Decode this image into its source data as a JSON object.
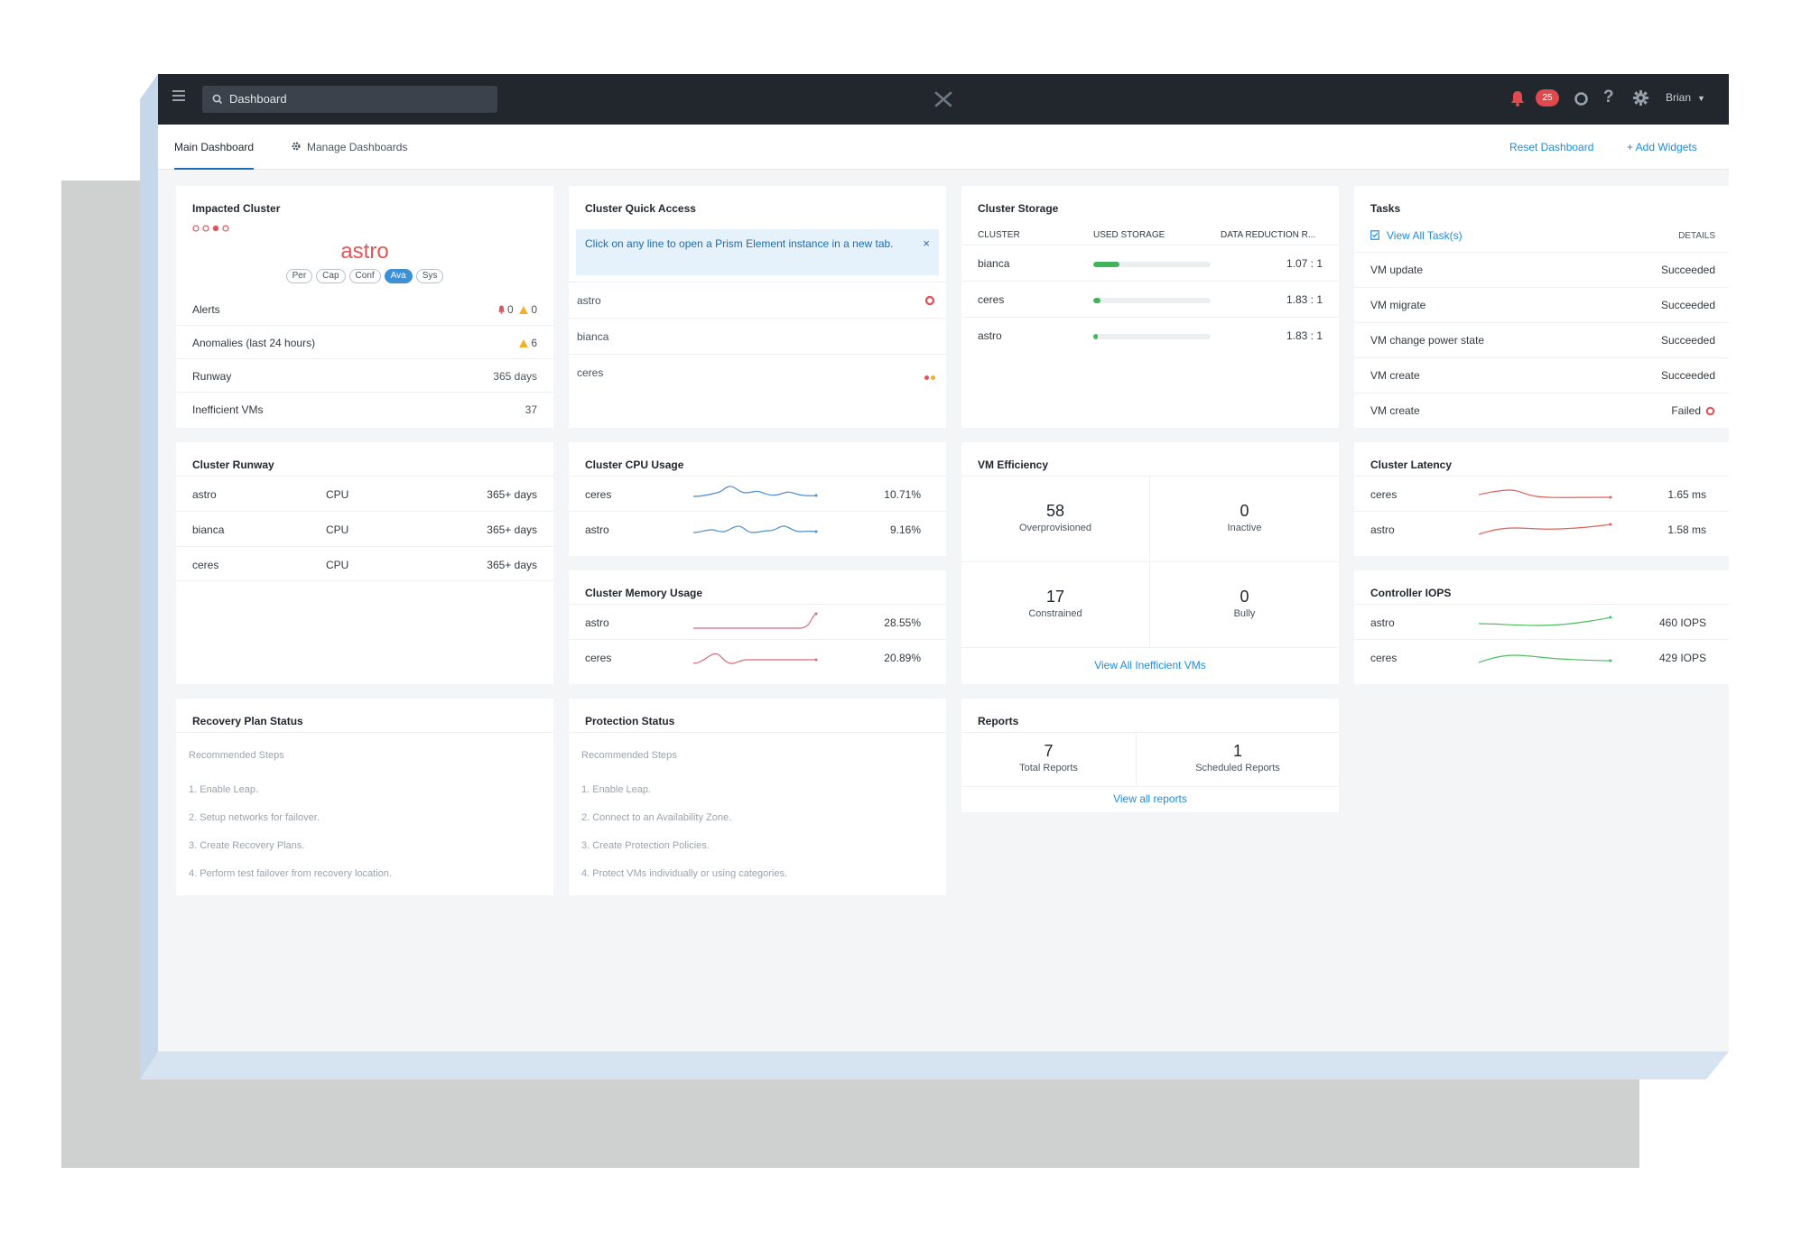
{
  "topbar": {
    "search_value": "Dashboard",
    "alert_count": "25",
    "user_name": "Brian"
  },
  "tabs": {
    "main": "Main Dashboard",
    "manage": "Manage Dashboards",
    "reset": "Reset Dashboard",
    "add": "+ Add Widgets"
  },
  "impacted_cluster": {
    "title": "Impacted Cluster",
    "cluster_name": "astro",
    "pills": [
      "Per",
      "Cap",
      "Conf",
      "Ava",
      "Sys"
    ],
    "active_pill": "Ava",
    "rows": [
      {
        "label": "Alerts",
        "critical": "0",
        "warning": "0"
      },
      {
        "label": "Anomalies (last 24 hours)",
        "value": "6"
      },
      {
        "label": "Runway",
        "value": "365 days"
      },
      {
        "label": "Inefficient VMs",
        "value": "37"
      }
    ]
  },
  "quick_access": {
    "title": "Cluster Quick Access",
    "banner": "Click on any line to open a Prism Element instance in a new tab.",
    "close": "×",
    "items": [
      "astro",
      "bianca",
      "ceres"
    ]
  },
  "storage": {
    "title": "Cluster Storage",
    "headers": [
      "CLUSTER",
      "USED STORAGE",
      "DATA REDUCTION R..."
    ],
    "rows": [
      {
        "cluster": "bianca",
        "used_fraction": 0.22,
        "ratio": "1.07 : 1"
      },
      {
        "cluster": "ceres",
        "used_fraction": 0.06,
        "ratio": "1.83 : 1"
      },
      {
        "cluster": "astro",
        "used_fraction": 0.04,
        "ratio": "1.83 : 1"
      }
    ]
  },
  "tasks": {
    "title": "Tasks",
    "view_all": "View All Task(s)",
    "details": "DETAILS",
    "rows": [
      {
        "name": "VM update",
        "status": "Succeeded"
      },
      {
        "name": "VM migrate",
        "status": "Succeeded"
      },
      {
        "name": "VM change power state",
        "status": "Succeeded"
      },
      {
        "name": "VM create",
        "status": "Succeeded"
      },
      {
        "name": "VM create",
        "status": "Failed"
      }
    ]
  },
  "runway": {
    "title": "Cluster Runway",
    "rows": [
      {
        "cluster": "astro",
        "resource": "CPU",
        "value": "365+ days"
      },
      {
        "cluster": "bianca",
        "resource": "CPU",
        "value": "365+ days"
      },
      {
        "cluster": "ceres",
        "resource": "CPU",
        "value": "365+ days"
      }
    ]
  },
  "cpu_usage": {
    "title": "Cluster CPU Usage",
    "rows": [
      {
        "cluster": "ceres",
        "value": "10.71%"
      },
      {
        "cluster": "astro",
        "value": "9.16%"
      }
    ]
  },
  "memory_usage": {
    "title": "Cluster Memory Usage",
    "rows": [
      {
        "cluster": "astro",
        "value": "28.55%"
      },
      {
        "cluster": "ceres",
        "value": "20.89%"
      }
    ]
  },
  "vm_efficiency": {
    "title": "VM Efficiency",
    "cells": [
      {
        "value": "58",
        "label": "Overprovisioned"
      },
      {
        "value": "0",
        "label": "Inactive"
      },
      {
        "value": "17",
        "label": "Constrained"
      },
      {
        "value": "0",
        "label": "Bully"
      }
    ],
    "link": "View All Inefficient VMs"
  },
  "latency": {
    "title": "Cluster Latency",
    "rows": [
      {
        "cluster": "ceres",
        "value": "1.65 ms"
      },
      {
        "cluster": "astro",
        "value": "1.58 ms"
      }
    ]
  },
  "iops": {
    "title": "Controller IOPS",
    "rows": [
      {
        "cluster": "astro",
        "value": "460 IOPS"
      },
      {
        "cluster": "ceres",
        "value": "429 IOPS"
      }
    ]
  },
  "recovery": {
    "title": "Recovery Plan Status",
    "subtitle": "Recommended Steps",
    "steps": [
      "1. Enable Leap.",
      "2. Setup networks for failover.",
      "3. Create Recovery Plans.",
      "4. Perform test failover from recovery location."
    ]
  },
  "protection": {
    "title": "Protection Status",
    "subtitle": "Recommended Steps",
    "steps": [
      "1. Enable Leap.",
      "2. Connect to an Availability Zone.",
      "3. Create Protection Policies.",
      "4. Protect VMs individually or using categories."
    ]
  },
  "reports": {
    "title": "Reports",
    "total": "7",
    "total_label": "Total Reports",
    "scheduled": "1",
    "scheduled_label": "Scheduled Reports",
    "link": "View all reports"
  },
  "colors": {
    "topbar": "#22272e",
    "accent": "#1b8ce0",
    "critical": "#e2565b",
    "warning": "#f2b12b",
    "success": "#43b45c",
    "cpu_line": "#4d8fcf",
    "memory_line": "#d86a7a",
    "latency_line": "#e0605a",
    "iops_line": "#4cbf5e"
  }
}
